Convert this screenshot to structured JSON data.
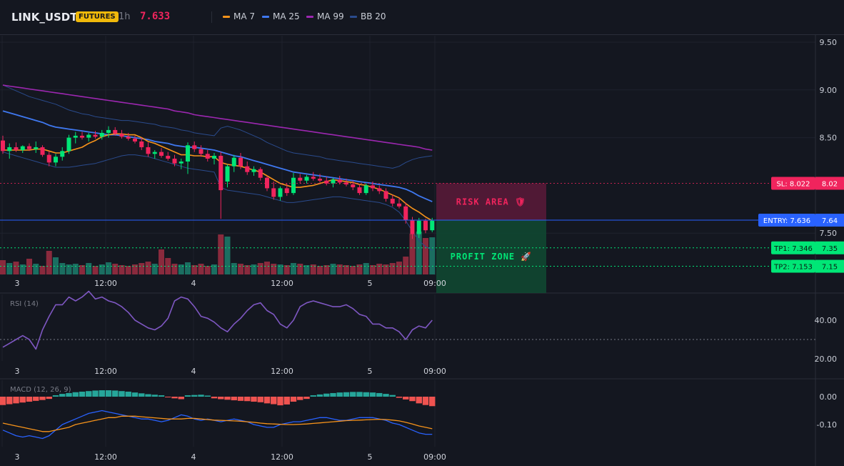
{
  "header": {
    "symbol": "LINK_USDT",
    "badge": "FUTURES",
    "timeframe": "1h",
    "price": "7.633",
    "legend": [
      {
        "label": "MA 7",
        "color": "#f7931a"
      },
      {
        "label": "MA 25",
        "color": "#3f78f0"
      },
      {
        "label": "MA 99",
        "color": "#9c27b0"
      },
      {
        "label": "BB 20",
        "color": "#2a4b8d"
      }
    ]
  },
  "colors": {
    "up": "#00e676",
    "down": "#f0245d",
    "vol_up": "#1b6e61",
    "vol_down": "#8a2a3d"
  },
  "time_ticks": [
    "3",
    "12:00",
    "4",
    "12:00",
    "5",
    "09:00"
  ],
  "zones": {
    "risk_label": "RISK AREA 🛡",
    "profit_label": "PROFIT ZONE 🚀"
  },
  "chart_data": [
    {
      "type": "candlestick",
      "title": "LINK_USDT 1h",
      "ylim": [
        7.25,
        9.65
      ],
      "y_ticks": [
        "9.50",
        "9.00",
        "8.50",
        "8.02",
        "7.64",
        "7.50",
        "7.35",
        "7.15"
      ],
      "candles": [
        [
          8.47,
          8.52,
          8.33,
          8.36
        ],
        [
          8.36,
          8.44,
          8.28,
          8.4
        ],
        [
          8.4,
          8.45,
          8.35,
          8.37
        ],
        [
          8.37,
          8.42,
          8.34,
          8.41
        ],
        [
          8.41,
          8.44,
          8.36,
          8.38
        ],
        [
          8.38,
          8.46,
          8.34,
          8.4
        ],
        [
          8.4,
          8.42,
          8.3,
          8.32
        ],
        [
          8.32,
          8.36,
          8.2,
          8.24
        ],
        [
          8.24,
          8.33,
          8.2,
          8.3
        ],
        [
          8.3,
          8.4,
          8.26,
          8.36
        ],
        [
          8.36,
          8.53,
          8.33,
          8.5
        ],
        [
          8.5,
          8.56,
          8.44,
          8.52
        ],
        [
          8.52,
          8.56,
          8.48,
          8.5
        ],
        [
          8.5,
          8.55,
          8.46,
          8.53
        ],
        [
          8.53,
          8.57,
          8.49,
          8.51
        ],
        [
          8.51,
          8.58,
          8.48,
          8.55
        ],
        [
          8.55,
          8.62,
          8.5,
          8.58
        ],
        [
          8.58,
          8.61,
          8.52,
          8.54
        ],
        [
          8.54,
          8.58,
          8.49,
          8.51
        ],
        [
          8.51,
          8.55,
          8.47,
          8.49
        ],
        [
          8.49,
          8.52,
          8.44,
          8.46
        ],
        [
          8.46,
          8.5,
          8.37,
          8.4
        ],
        [
          8.4,
          8.45,
          8.3,
          8.33
        ],
        [
          8.33,
          8.37,
          8.28,
          8.35
        ],
        [
          8.35,
          8.39,
          8.29,
          8.31
        ],
        [
          8.31,
          8.35,
          8.26,
          8.28
        ],
        [
          8.28,
          8.32,
          8.2,
          8.23
        ],
        [
          8.23,
          8.28,
          8.17,
          8.25
        ],
        [
          8.25,
          8.45,
          8.12,
          8.42
        ],
        [
          8.42,
          8.46,
          8.35,
          8.38
        ],
        [
          8.38,
          8.42,
          8.3,
          8.33
        ],
        [
          8.33,
          8.37,
          8.25,
          8.28
        ],
        [
          8.28,
          8.34,
          8.22,
          8.31
        ],
        [
          8.31,
          8.35,
          7.65,
          7.95
        ],
        [
          8.04,
          8.22,
          7.98,
          8.2
        ],
        [
          8.2,
          8.32,
          8.14,
          8.29
        ],
        [
          8.29,
          8.34,
          8.17,
          8.2
        ],
        [
          8.2,
          8.25,
          8.11,
          8.14
        ],
        [
          8.14,
          8.2,
          8.1,
          8.17
        ],
        [
          8.17,
          8.19,
          8.05,
          8.08
        ],
        [
          8.08,
          8.1,
          7.94,
          7.97
        ],
        [
          7.97,
          8.04,
          7.85,
          7.88
        ],
        [
          7.88,
          7.99,
          7.84,
          7.97
        ],
        [
          7.97,
          8.02,
          7.89,
          7.92
        ],
        [
          7.92,
          8.13,
          7.9,
          8.08
        ],
        [
          8.08,
          8.12,
          8.02,
          8.05
        ],
        [
          8.05,
          8.11,
          8.02,
          8.09
        ],
        [
          8.09,
          8.14,
          8.05,
          8.07
        ],
        [
          8.07,
          8.12,
          8.03,
          8.05
        ],
        [
          8.05,
          8.09,
          8.0,
          8.02
        ],
        [
          8.02,
          8.08,
          7.98,
          8.06
        ],
        [
          8.06,
          8.1,
          8.01,
          8.03
        ],
        [
          8.03,
          8.07,
          7.99,
          8.01
        ],
        [
          8.01,
          8.05,
          7.95,
          7.98
        ],
        [
          7.98,
          8.01,
          7.9,
          7.92
        ],
        [
          7.92,
          8.02,
          7.9,
          8.0
        ],
        [
          8.0,
          8.04,
          7.94,
          7.97
        ],
        [
          7.97,
          8.0,
          7.91,
          7.94
        ],
        [
          7.94,
          7.97,
          7.83,
          7.86
        ],
        [
          7.86,
          7.9,
          7.78,
          7.81
        ],
        [
          7.81,
          7.87,
          7.76,
          7.78
        ],
        [
          7.78,
          7.82,
          7.6,
          7.64
        ],
        [
          7.64,
          7.67,
          7.44,
          7.49
        ],
        [
          7.49,
          7.66,
          7.45,
          7.63
        ],
        [
          7.63,
          7.65,
          7.5,
          7.53
        ],
        [
          7.53,
          7.66,
          7.51,
          7.63
        ]
      ],
      "volume": [
        2,
        1.6,
        1.8,
        1.4,
        2.2,
        1.5,
        1.2,
        3.3,
        2.4,
        1.6,
        1.4,
        1.5,
        1.3,
        1.6,
        1.2,
        1.4,
        1.7,
        1.5,
        1.3,
        1.2,
        1.4,
        1.6,
        1.8,
        1.5,
        3.5,
        2.3,
        1.5,
        1.4,
        1.7,
        1.3,
        1.5,
        1.2,
        1.4,
        5.6,
        5.3,
        1.6,
        1.5,
        1.3,
        1.4,
        1.6,
        1.8,
        1.5,
        1.4,
        1.3,
        1.6,
        1.5,
        1.3,
        1.4,
        1.2,
        1.3,
        1.5,
        1.4,
        1.3,
        1.2,
        1.4,
        1.6,
        1.3,
        1.5,
        1.4,
        1.6,
        1.8,
        2.5,
        5.7,
        6,
        5.1,
        5.2
      ],
      "ma7": [
        8.37,
        8.37,
        8.37,
        8.37,
        8.37,
        8.38,
        8.38,
        8.36,
        8.34,
        8.34,
        8.36,
        8.38,
        8.4,
        8.44,
        8.47,
        8.51,
        8.53,
        8.54,
        8.54,
        8.53,
        8.53,
        8.5,
        8.46,
        8.44,
        8.41,
        8.38,
        8.35,
        8.32,
        8.32,
        8.31,
        8.31,
        8.3,
        8.3,
        8.24,
        8.22,
        8.21,
        8.2,
        8.18,
        8.16,
        8.14,
        8.1,
        8.06,
        8.02,
        8.0,
        7.98,
        7.98,
        7.99,
        8.0,
        8.02,
        8.04,
        8.06,
        8.05,
        8.04,
        8.03,
        8.01,
        8.0,
        7.98,
        7.96,
        7.93,
        7.9,
        7.87,
        7.81,
        7.76,
        7.72,
        7.67,
        7.63
      ],
      "ma25": [
        8.78,
        8.76,
        8.74,
        8.72,
        8.7,
        8.68,
        8.66,
        8.63,
        8.61,
        8.6,
        8.59,
        8.58,
        8.57,
        8.56,
        8.55,
        8.54,
        8.53,
        8.53,
        8.52,
        8.51,
        8.5,
        8.49,
        8.48,
        8.46,
        8.45,
        8.44,
        8.42,
        8.41,
        8.4,
        8.4,
        8.39,
        8.38,
        8.37,
        8.35,
        8.33,
        8.31,
        8.3,
        8.28,
        8.26,
        8.24,
        8.22,
        8.2,
        8.18,
        8.16,
        8.14,
        8.13,
        8.12,
        8.11,
        8.1,
        8.09,
        8.08,
        8.07,
        8.06,
        8.05,
        8.04,
        8.03,
        8.02,
        8.01,
        8.0,
        7.99,
        7.98,
        7.96,
        7.93,
        7.89,
        7.86,
        7.83
      ],
      "ma99": [
        9.05,
        9.04,
        9.03,
        9.02,
        9.01,
        9.0,
        8.99,
        8.98,
        8.97,
        8.96,
        8.95,
        8.94,
        8.93,
        8.92,
        8.91,
        8.9,
        8.89,
        8.88,
        8.87,
        8.86,
        8.85,
        8.84,
        8.83,
        8.82,
        8.81,
        8.8,
        8.78,
        8.77,
        8.76,
        8.74,
        8.73,
        8.72,
        8.71,
        8.7,
        8.69,
        8.68,
        8.67,
        8.66,
        8.65,
        8.64,
        8.63,
        8.62,
        8.61,
        8.6,
        8.59,
        8.58,
        8.57,
        8.56,
        8.55,
        8.54,
        8.53,
        8.52,
        8.51,
        8.5,
        8.49,
        8.48,
        8.47,
        8.46,
        8.45,
        8.44,
        8.43,
        8.42,
        8.41,
        8.4,
        8.38,
        8.37
      ],
      "bb_upper": [
        9.05,
        9.02,
        8.99,
        8.96,
        8.93,
        8.91,
        8.89,
        8.87,
        8.85,
        8.82,
        8.79,
        8.77,
        8.75,
        8.74,
        8.72,
        8.71,
        8.7,
        8.69,
        8.68,
        8.68,
        8.67,
        8.66,
        8.65,
        8.64,
        8.62,
        8.61,
        8.6,
        8.58,
        8.57,
        8.55,
        8.54,
        8.53,
        8.52,
        8.6,
        8.62,
        8.6,
        8.58,
        8.55,
        8.52,
        8.49,
        8.45,
        8.42,
        8.39,
        8.36,
        8.34,
        8.33,
        8.32,
        8.31,
        8.3,
        8.28,
        8.27,
        8.26,
        8.25,
        8.24,
        8.23,
        8.22,
        8.21,
        8.2,
        8.19,
        8.18,
        8.2,
        8.24,
        8.27,
        8.29,
        8.3,
        8.31
      ],
      "bb_lower": [
        8.35,
        8.33,
        8.31,
        8.29,
        8.27,
        8.25,
        8.23,
        8.21,
        8.19,
        8.19,
        8.19,
        8.2,
        8.21,
        8.22,
        8.23,
        8.25,
        8.27,
        8.29,
        8.31,
        8.32,
        8.32,
        8.31,
        8.3,
        8.28,
        8.26,
        8.24,
        8.22,
        8.2,
        8.18,
        8.17,
        8.16,
        8.15,
        8.14,
        7.98,
        7.95,
        7.94,
        7.93,
        7.92,
        7.91,
        7.9,
        7.88,
        7.86,
        7.84,
        7.82,
        7.82,
        7.83,
        7.84,
        7.85,
        7.86,
        7.87,
        7.88,
        7.88,
        7.87,
        7.86,
        7.85,
        7.84,
        7.83,
        7.82,
        7.8,
        7.77,
        7.72,
        7.63,
        7.52,
        7.42,
        7.36,
        7.32
      ]
    },
    {
      "type": "line",
      "title": "RSI (14)",
      "ylim": [
        20,
        60
      ],
      "y_ticks": [
        "40.00",
        "20.00"
      ],
      "levels": [
        30
      ],
      "rsi": [
        26,
        28,
        30,
        32,
        30,
        25,
        35,
        42,
        48,
        48,
        52,
        50,
        52,
        55,
        51,
        52,
        50,
        49,
        47,
        44,
        40,
        38,
        36,
        35,
        37,
        41,
        50,
        52,
        51,
        47,
        42,
        41,
        39,
        36,
        34,
        38,
        41,
        45,
        48,
        49,
        45,
        43,
        38,
        36,
        40,
        47,
        49,
        50,
        49,
        48,
        47,
        47,
        48,
        46,
        43,
        42,
        38,
        38,
        36,
        36,
        34,
        30,
        35,
        37,
        36,
        40
      ]
    },
    {
      "type": "bar",
      "title": "MACD (12, 26, 9)",
      "ylim": [
        -0.18,
        0.05
      ],
      "y_ticks": [
        "0.00",
        "-0.10"
      ],
      "histogram": [
        -0.03,
        -0.027,
        -0.024,
        -0.021,
        -0.018,
        -0.015,
        -0.012,
        -0.008,
        0.005,
        0.01,
        0.013,
        0.016,
        0.018,
        0.02,
        0.022,
        0.023,
        0.023,
        0.022,
        0.02,
        0.018,
        0.015,
        0.012,
        0.009,
        0.007,
        0.005,
        -0.002,
        -0.006,
        -0.009,
        0.005,
        0.006,
        0.007,
        0.004,
        -0.006,
        -0.009,
        -0.011,
        -0.013,
        -0.015,
        -0.016,
        -0.018,
        -0.02,
        -0.024,
        -0.027,
        -0.031,
        -0.028,
        -0.018,
        -0.012,
        -0.008,
        0.005,
        0.008,
        0.011,
        0.013,
        0.015,
        0.016,
        0.017,
        0.017,
        0.016,
        0.015,
        0.013,
        0.01,
        0.006,
        -0.004,
        -0.01,
        -0.016,
        -0.024,
        -0.03,
        -0.034
      ],
      "macd_line": [
        -0.12,
        -0.13,
        -0.14,
        -0.145,
        -0.14,
        -0.145,
        -0.15,
        -0.14,
        -0.12,
        -0.1,
        -0.09,
        -0.08,
        -0.07,
        -0.06,
        -0.055,
        -0.05,
        -0.055,
        -0.06,
        -0.065,
        -0.07,
        -0.075,
        -0.08,
        -0.08,
        -0.085,
        -0.09,
        -0.085,
        -0.075,
        -0.065,
        -0.07,
        -0.08,
        -0.085,
        -0.08,
        -0.085,
        -0.09,
        -0.085,
        -0.08,
        -0.085,
        -0.09,
        -0.1,
        -0.105,
        -0.11,
        -0.11,
        -0.1,
        -0.095,
        -0.09,
        -0.09,
        -0.085,
        -0.08,
        -0.075,
        -0.075,
        -0.08,
        -0.085,
        -0.085,
        -0.08,
        -0.075,
        -0.075,
        -0.075,
        -0.08,
        -0.085,
        -0.095,
        -0.1,
        -0.11,
        -0.12,
        -0.13,
        -0.135,
        -0.135
      ],
      "signal_line": [
        -0.095,
        -0.1,
        -0.105,
        -0.11,
        -0.115,
        -0.12,
        -0.125,
        -0.125,
        -0.12,
        -0.115,
        -0.11,
        -0.1,
        -0.095,
        -0.09,
        -0.085,
        -0.08,
        -0.075,
        -0.075,
        -0.07,
        -0.07,
        -0.07,
        -0.072,
        -0.074,
        -0.076,
        -0.078,
        -0.08,
        -0.08,
        -0.08,
        -0.078,
        -0.078,
        -0.08,
        -0.082,
        -0.084,
        -0.085,
        -0.086,
        -0.087,
        -0.088,
        -0.09,
        -0.092,
        -0.095,
        -0.097,
        -0.098,
        -0.099,
        -0.1,
        -0.1,
        -0.099,
        -0.098,
        -0.096,
        -0.094,
        -0.092,
        -0.09,
        -0.088,
        -0.086,
        -0.085,
        -0.084,
        -0.083,
        -0.082,
        -0.081,
        -0.082,
        -0.084,
        -0.087,
        -0.092,
        -0.098,
        -0.105,
        -0.11,
        -0.115
      ]
    }
  ],
  "levels": [
    {
      "key": "sl",
      "label": "SL: 8.022",
      "value_text": "8.02",
      "value": 8.022,
      "color": "#f0245d",
      "text_color": "#ffffff"
    },
    {
      "key": "entry",
      "label": "ENTRY: 7.636",
      "value_text": "7.64",
      "value": 7.636,
      "color": "#2962ff",
      "text_color": "#ffffff"
    },
    {
      "key": "tp1",
      "label": "TP1: 7.346",
      "value_text": "7.35",
      "value": 7.346,
      "color": "#00e676",
      "text_color": "#0b1a12"
    },
    {
      "key": "tp2",
      "label": "TP2: 7.153",
      "value_text": "7.15",
      "value": 7.153,
      "color": "#00e676",
      "text_color": "#0b1a12"
    }
  ]
}
